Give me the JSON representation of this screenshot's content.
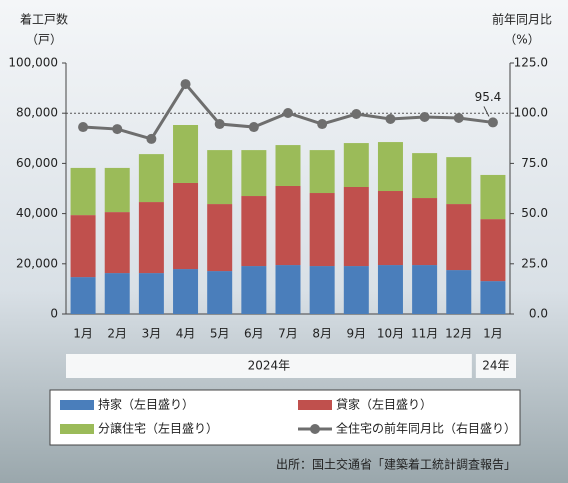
{
  "chart_data": {
    "type": "bar_line",
    "y_title": "着工戸数",
    "y_unit": "（戸）",
    "y2_title": "前年同月比",
    "y2_unit": "（%）",
    "categories": [
      "1月",
      "2月",
      "3月",
      "4月",
      "5月",
      "6月",
      "7月",
      "8月",
      "9月",
      "10月",
      "11月",
      "12月",
      "1月"
    ],
    "groups": [
      {
        "label": "2024年",
        "count": 12
      },
      {
        "label": "24年",
        "count": 1
      }
    ],
    "stacked": true,
    "series": [
      {
        "name": "持家（左目盛り）",
        "color": "#4a7ebb",
        "values": [
          14700,
          16300,
          16300,
          17900,
          17100,
          19100,
          19500,
          19100,
          19100,
          19500,
          19500,
          17500,
          13100
        ]
      },
      {
        "name": "貸家（左目盛り）",
        "color": "#c0504d",
        "values": [
          24700,
          24300,
          28300,
          34300,
          26700,
          27900,
          31500,
          29100,
          31500,
          29500,
          26700,
          26300,
          24700
        ]
      },
      {
        "name": "分譲住宅（左目盛り）",
        "color": "#9bbb59",
        "values": [
          18800,
          17600,
          19100,
          23100,
          21500,
          18300,
          16300,
          17100,
          17500,
          19500,
          17900,
          18700,
          17600
        ]
      },
      {
        "name": "全住宅の前年同月比（右目盛り）",
        "color": "#6e6e6e",
        "axis": "y2",
        "type": "line",
        "values": [
          93.1,
          92.1,
          87.2,
          114.5,
          94.6,
          93.1,
          100.1,
          94.6,
          99.6,
          97.1,
          98.1,
          97.6,
          95.4
        ],
        "value_labels": [
          null,
          null,
          null,
          null,
          null,
          null,
          null,
          null,
          null,
          null,
          null,
          null,
          "95.4"
        ]
      }
    ],
    "ylim": [
      0,
      100000
    ],
    "yticks": [
      {
        "value": 0,
        "label": "0"
      },
      {
        "value": 20000,
        "label": "20,000"
      },
      {
        "value": 40000,
        "label": "40,000"
      },
      {
        "value": 60000,
        "label": "60,000"
      },
      {
        "value": 80000,
        "label": "80,000"
      },
      {
        "value": 100000,
        "label": "100,000"
      }
    ],
    "y2lim": [
      0,
      125
    ],
    "y2ticks": [
      {
        "value": 0,
        "label": "0.0"
      },
      {
        "value": 25,
        "label": "25.0"
      },
      {
        "value": 50,
        "label": "50.0"
      },
      {
        "value": 75,
        "label": "75.0"
      },
      {
        "value": 100,
        "label": "100.0"
      },
      {
        "value": 125,
        "label": "125.0"
      }
    ],
    "y2_refline": 100,
    "source": "出所：国土交通省「建築着工統計調査報告」"
  }
}
